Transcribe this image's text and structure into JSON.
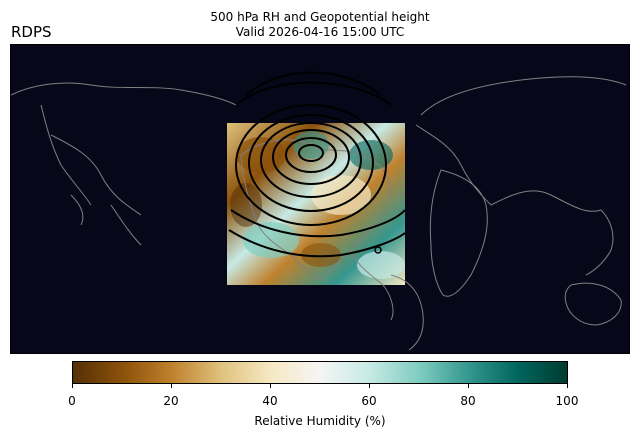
{
  "title_line1": "500 hPa RH and Geopotential height",
  "title_line2": "Valid 2026-04-16 15:00 UTC",
  "model_label": "RDPS",
  "colorbar": {
    "label": "Relative Humidity (%)",
    "ticks": [
      "0",
      "20",
      "40",
      "60",
      "80",
      "100"
    ],
    "colors": [
      "#543005",
      "#8c510a",
      "#bf812d",
      "#dfc27d",
      "#f6e8c3",
      "#f5f5f5",
      "#c7eae5",
      "#80cdc1",
      "#35978f",
      "#01665e",
      "#003c30"
    ]
  },
  "colors": {
    "ocean": "#07071a",
    "coastline": "#808080",
    "contour": "#000000"
  }
}
